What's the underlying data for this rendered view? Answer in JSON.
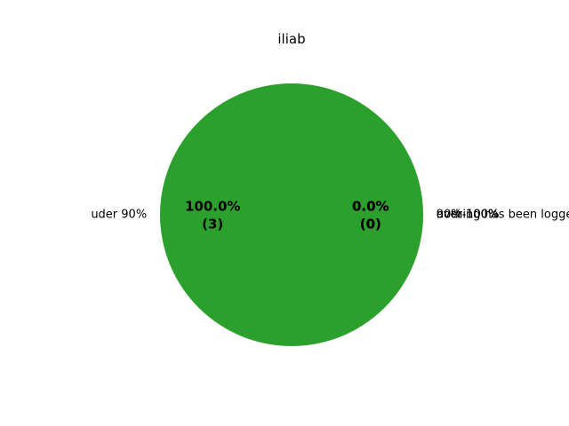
{
  "chart_data": {
    "type": "pie",
    "title": "iliab",
    "slices": [
      {
        "label": "uder 90%",
        "value": 3,
        "percent_text": "100.0%",
        "count_text": "(3)",
        "color": "#2ca02c"
      },
      {
        "label": "90%-100%",
        "value": 0,
        "percent_text": "0.0%",
        "count_text": "(0)",
        "color": "#1f77b4"
      },
      {
        "label": "over 100%",
        "value": 0,
        "percent_text": "0.0%",
        "count_text": "(0)",
        "color": "#ff7f0e"
      },
      {
        "label": "nothing has been logged",
        "value": 0,
        "percent_text": "0.0%",
        "count_text": "(0)",
        "color": "#d62728"
      }
    ]
  }
}
